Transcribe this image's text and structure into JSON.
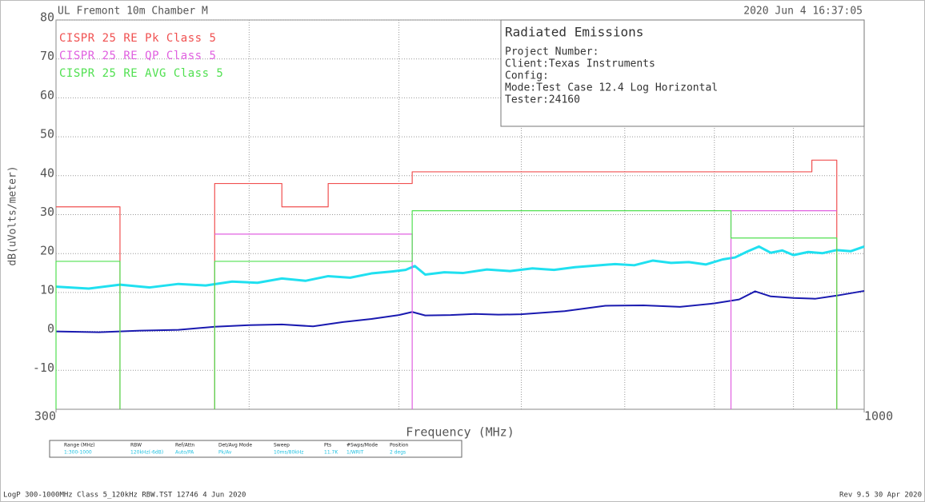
{
  "header_left": "UL Fremont 10m Chamber M",
  "header_right": "2020 Jun 4   16:37:05",
  "footer_left": "LogP 300-1000MHz Class 5_120kHz RBW.TST 12746  4 Jun 2020",
  "footer_right": "Rev 9.5 30 Apr 2020",
  "settings_table": {
    "headers": [
      "Range (MHz)",
      "RBW",
      "Ref/Attn",
      "Det/Avg Mode",
      "Sweep",
      "Pts",
      "#Swps/Mode",
      "Position"
    ],
    "values": [
      "1:300-1000",
      "120kHz(-6dB)",
      "Auto/PA",
      "Pk/Av",
      "10ms/80kHz",
      "11.7K",
      "1/WRIT",
      "2 degs"
    ]
  },
  "info_box": {
    "title": "Radiated Emissions",
    "lines": [
      "Project Number:",
      "Client:Texas Instruments",
      "Config:",
      "Mode:Test Case 12.4 Log Horizontal",
      "Tester:24160"
    ]
  },
  "chart_data": {
    "type": "line",
    "x_label": "Frequency (MHz)",
    "y_label": "dB(uVolts/meter)",
    "xscale": "log",
    "xlim": [
      300,
      1000
    ],
    "xticks": [
      300,
      1000
    ],
    "xgrid": [
      400,
      500,
      600,
      700,
      800,
      900
    ],
    "ylim": [
      -20,
      80
    ],
    "yticks": [
      -10,
      0,
      10,
      20,
      30,
      40,
      50,
      60,
      70,
      80
    ],
    "grid": true,
    "series": [
      {
        "name": "CISPR 25 RE Pk Class 5",
        "color": "#f05050",
        "x": [
          300,
          330,
          330,
          null,
          380,
          380,
          420,
          420,
          450,
          450,
          510,
          510,
          925,
          925,
          960,
          960
        ],
        "values": [
          32,
          32,
          -20,
          null,
          -20,
          38,
          38,
          32,
          32,
          38,
          38,
          41,
          41,
          44,
          44,
          -20
        ]
      },
      {
        "name": "CISPR 25 RE QP Class 5",
        "color": "#e060e0",
        "x": [
          380,
          510,
          510,
          null,
          820,
          820,
          960
        ],
        "values": [
          25,
          25,
          -20,
          null,
          -20,
          31,
          31
        ]
      },
      {
        "name": "CISPR 25 RE AVG Class 5",
        "color": "#50e050",
        "x": [
          300,
          300,
          330,
          330,
          null,
          380,
          380,
          510,
          510,
          820,
          820,
          960,
          960
        ],
        "values": [
          -20,
          18,
          18,
          -20,
          null,
          -20,
          18,
          18,
          31,
          31,
          24,
          24,
          -20
        ]
      },
      {
        "color": "#20e0f0",
        "x": [
          300,
          315,
          330,
          345,
          360,
          375,
          390,
          405,
          420,
          435,
          450,
          465,
          480,
          495,
          505,
          512,
          520,
          535,
          550,
          570,
          590,
          610,
          630,
          650,
          670,
          690,
          710,
          730,
          750,
          770,
          790,
          810,
          825,
          840,
          855,
          870,
          885,
          900,
          920,
          940,
          960,
          980,
          1000
        ],
        "values": [
          11.5,
          11,
          12,
          11.3,
          12.2,
          11.8,
          12.8,
          12.5,
          13.6,
          13,
          14.2,
          13.8,
          14.9,
          15.4,
          15.8,
          16.8,
          14.6,
          15.2,
          15,
          15.9,
          15.5,
          16.2,
          15.8,
          16.5,
          16.9,
          17.3,
          17,
          18.2,
          17.6,
          17.8,
          17.2,
          18.5,
          19,
          20.5,
          21.8,
          20.2,
          20.8,
          19.6,
          20.4,
          20.1,
          20.9,
          20.6,
          21.8
        ]
      },
      {
        "color": "#1a1ab0",
        "x": [
          300,
          320,
          340,
          360,
          380,
          400,
          420,
          440,
          460,
          480,
          500,
          510,
          520,
          540,
          560,
          580,
          600,
          640,
          680,
          720,
          760,
          800,
          830,
          850,
          870,
          900,
          930,
          960,
          1000
        ],
        "values": [
          0,
          -0.2,
          0.2,
          0.4,
          1.2,
          1.6,
          1.8,
          1.3,
          2.4,
          3.2,
          4.2,
          5,
          4.1,
          4.2,
          4.5,
          4.3,
          4.4,
          5.2,
          6.6,
          6.7,
          6.3,
          7.2,
          8.2,
          10.3,
          9,
          8.6,
          8.4,
          9.2,
          10.4
        ]
      }
    ]
  }
}
